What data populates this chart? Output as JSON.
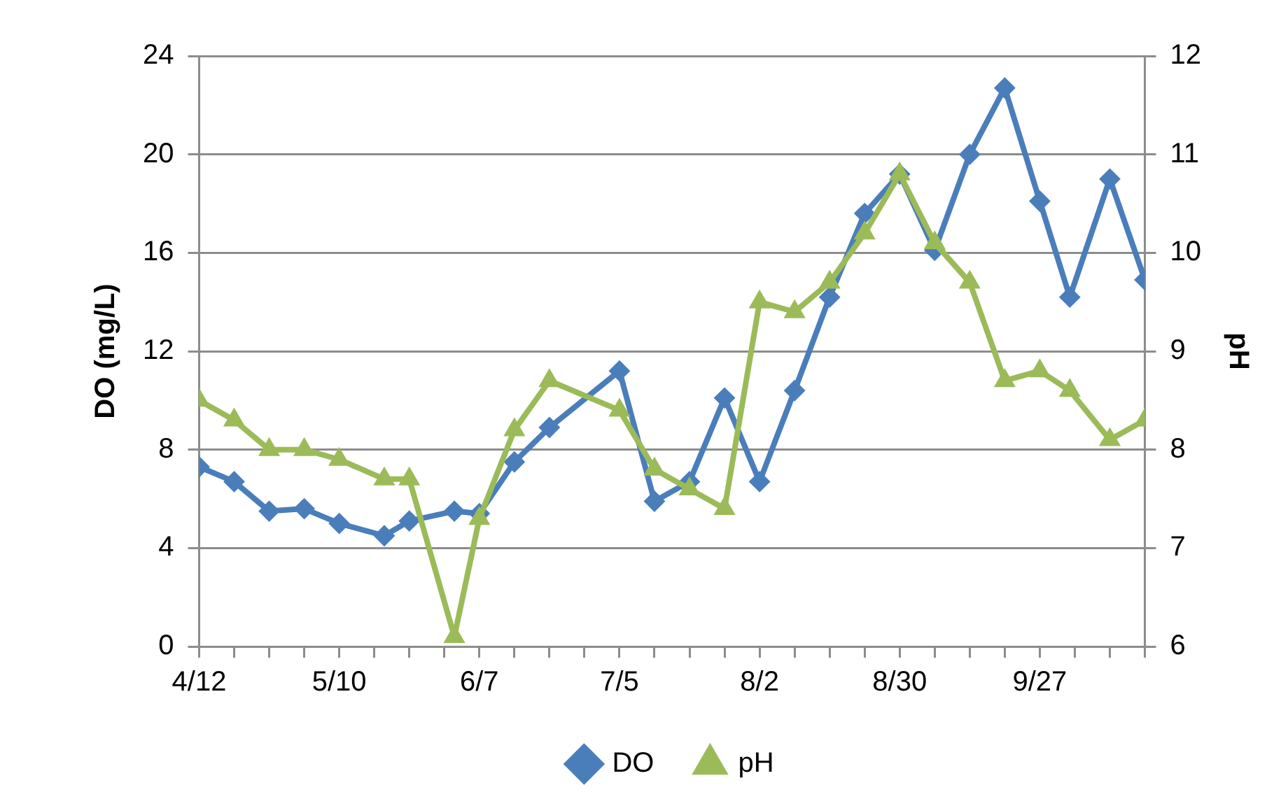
{
  "chart_data": {
    "type": "line",
    "x": [
      "--04-12",
      "--04-19",
      "--04-26",
      "--05-03",
      "--05-10",
      "--05-19",
      "--05-24",
      "--06-02",
      "--06-07",
      "--06-14",
      "--06-21",
      "--07-05",
      "--07-12",
      "--07-19",
      "--07-26",
      "--08-02",
      "--08-09",
      "--08-16",
      "--08-23",
      "--08-30",
      "--09-06",
      "--09-13",
      "--09-20",
      "--09-27",
      "--10-03",
      "--10-11",
      "--10-18"
    ],
    "series": [
      {
        "name": "DO",
        "color": "#4a7ebb",
        "marker": "diamond",
        "values": [
          7.3,
          6.7,
          5.5,
          5.6,
          5.0,
          4.5,
          5.1,
          5.5,
          5.4,
          7.5,
          8.9,
          11.2,
          5.9,
          6.7,
          10.1,
          6.7,
          10.4,
          14.2,
          17.6,
          19.2,
          16.1,
          20.0,
          22.7,
          18.1,
          14.2,
          19.0,
          14.9
        ]
      },
      {
        "name": "pH",
        "color": "#9bbb59",
        "marker": "triangle",
        "axis": "y2",
        "values": [
          8.5,
          8.3,
          8.0,
          8.0,
          7.9,
          7.7,
          7.7,
          6.1,
          7.3,
          8.2,
          8.7,
          8.4,
          7.8,
          7.6,
          7.4,
          9.5,
          9.4,
          9.7,
          10.2,
          10.8,
          10.1,
          9.7,
          8.7,
          8.8,
          8.6,
          8.1,
          8.3
        ]
      }
    ],
    "ylabel": "DO (mg/L)",
    "y2label": "pH",
    "xlim": [
      "--04-12",
      "--10-18"
    ],
    "xticks": [
      {
        "value": "--04-12",
        "label": "4/12"
      },
      {
        "value": "--04-19",
        "label": null
      },
      {
        "value": "--04-26",
        "label": null
      },
      {
        "value": "--05-03",
        "label": null
      },
      {
        "value": "--05-10",
        "label": "5/10"
      },
      {
        "value": "--05-17",
        "label": null
      },
      {
        "value": "--05-24",
        "label": null
      },
      {
        "value": "--05-31",
        "label": null
      },
      {
        "value": "--06-07",
        "label": "6/7"
      },
      {
        "value": "--06-14",
        "label": null
      },
      {
        "value": "--06-21",
        "label": null
      },
      {
        "value": "--06-28",
        "label": null
      },
      {
        "value": "--07-05",
        "label": "7/5"
      },
      {
        "value": "--07-12",
        "label": null
      },
      {
        "value": "--07-19",
        "label": null
      },
      {
        "value": "--07-26",
        "label": null
      },
      {
        "value": "--08-02",
        "label": "8/2"
      },
      {
        "value": "--08-09",
        "label": null
      },
      {
        "value": "--08-16",
        "label": null
      },
      {
        "value": "--08-23",
        "label": null
      },
      {
        "value": "--08-30",
        "label": "8/30"
      },
      {
        "value": "--09-06",
        "label": null
      },
      {
        "value": "--09-13",
        "label": null
      },
      {
        "value": "--09-20",
        "label": null
      },
      {
        "value": "--09-27",
        "label": "9/27"
      },
      {
        "value": "--10-04",
        "label": null
      },
      {
        "value": "--10-11",
        "label": null
      },
      {
        "value": "--10-18",
        "label": null
      }
    ],
    "ylim": [
      0,
      24
    ],
    "yticks": [
      0,
      4,
      8,
      12,
      16,
      20,
      24
    ],
    "y2lim": [
      6,
      12
    ],
    "y2ticks": [
      6,
      7,
      8,
      9,
      10,
      11,
      12
    ],
    "grid": "y",
    "legend": "bottom",
    "line_style": "solid"
  }
}
